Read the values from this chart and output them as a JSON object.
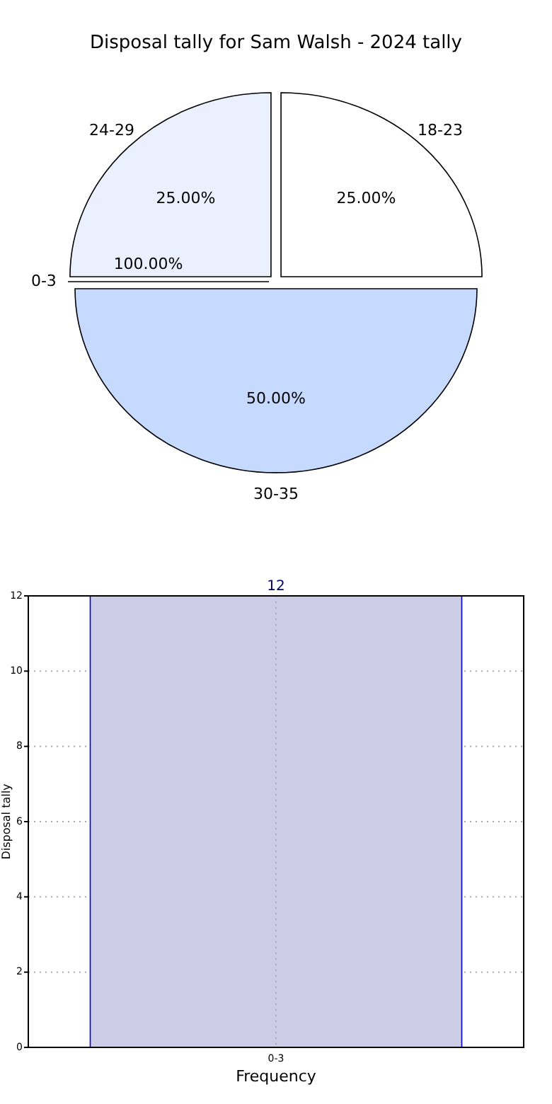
{
  "chart_data": [
    {
      "type": "pie",
      "title": "Disposal tally for Sam Walsh - 2024 tally",
      "categories": [
        "18-23",
        "24-29",
        "0-3",
        "30-35"
      ],
      "values": [
        25,
        25,
        0,
        50
      ],
      "colors": [
        "#ffffff",
        "#eaf0fe",
        "#dde8fe",
        "#c6d9fe"
      ],
      "value_labels": [
        "25.00%",
        "25.00%",
        null,
        "50.00%"
      ],
      "annotations": [
        {
          "text": "100.00%",
          "x": "0-3"
        }
      ]
    },
    {
      "type": "bar",
      "categories": [
        "0-3"
      ],
      "values": [
        12
      ],
      "color": "#ccccE6",
      "xlabel": "Frequency",
      "ylabel": "Disposal tally",
      "ylim": [
        0,
        12
      ],
      "yticks": [
        0,
        2,
        4,
        6,
        8,
        10,
        12
      ],
      "grid": true,
      "data_labels": true
    }
  ]
}
